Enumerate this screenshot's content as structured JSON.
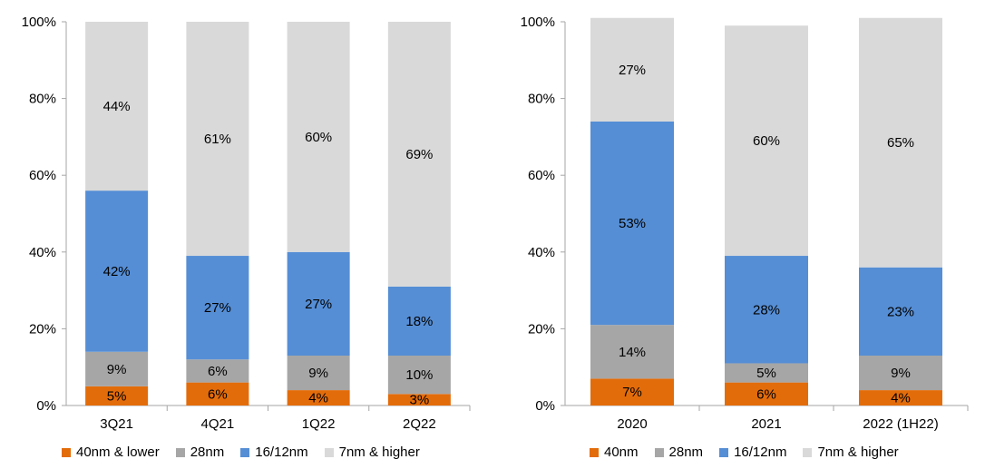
{
  "colors": {
    "orange": "#e36c0a",
    "gray": "#a6a6a6",
    "blue": "#558ed5",
    "lightgray": "#d9d9d9",
    "axis": "#a6a6a6"
  },
  "chart_data": [
    {
      "type": "bar",
      "stacked": true,
      "categories": [
        "3Q21",
        "4Q21",
        "1Q22",
        "2Q22"
      ],
      "series": [
        {
          "name": "40nm & lower",
          "color_key": "orange",
          "values": [
            5,
            6,
            4,
            3
          ],
          "labels": [
            "5%",
            "6%",
            "4%",
            "3%"
          ]
        },
        {
          "name": "28nm",
          "color_key": "gray",
          "values": [
            9,
            6,
            9,
            10
          ],
          "labels": [
            "9%",
            "6%",
            "9%",
            "10%"
          ]
        },
        {
          "name": "16/12nm",
          "color_key": "blue",
          "values": [
            42,
            27,
            27,
            18
          ],
          "labels": [
            "42%",
            "27%",
            "27%",
            "18%"
          ]
        },
        {
          "name": "7nm & higher",
          "color_key": "lightgray",
          "values": [
            44,
            61,
            60,
            69
          ],
          "labels": [
            "44%",
            "61%",
            "60%",
            "69%"
          ]
        }
      ],
      "ylim": [
        0,
        100
      ],
      "yticks": [
        "0%",
        "20%",
        "40%",
        "60%",
        "80%",
        "100%"
      ],
      "grid": false,
      "legend": "bottom"
    },
    {
      "type": "bar",
      "stacked": true,
      "categories": [
        "2020",
        "2021",
        "2022 (1H22)"
      ],
      "series": [
        {
          "name": "40nm",
          "color_key": "orange",
          "values": [
            7,
            6,
            4
          ],
          "labels": [
            "7%",
            "6%",
            "4%"
          ]
        },
        {
          "name": "28nm",
          "color_key": "gray",
          "values": [
            14,
            5,
            9
          ],
          "labels": [
            "14%",
            "5%",
            "9%"
          ]
        },
        {
          "name": "16/12nm",
          "color_key": "blue",
          "values": [
            53,
            28,
            23
          ],
          "labels": [
            "53%",
            "28%",
            "23%"
          ]
        },
        {
          "name": "7nm & higher",
          "color_key": "lightgray",
          "values": [
            27,
            60,
            65
          ],
          "labels": [
            "27%",
            "60%",
            "65%"
          ]
        }
      ],
      "ylim": [
        0,
        100
      ],
      "yticks": [
        "0%",
        "20%",
        "40%",
        "60%",
        "80%",
        "100%"
      ],
      "grid": false,
      "legend": "bottom"
    }
  ]
}
